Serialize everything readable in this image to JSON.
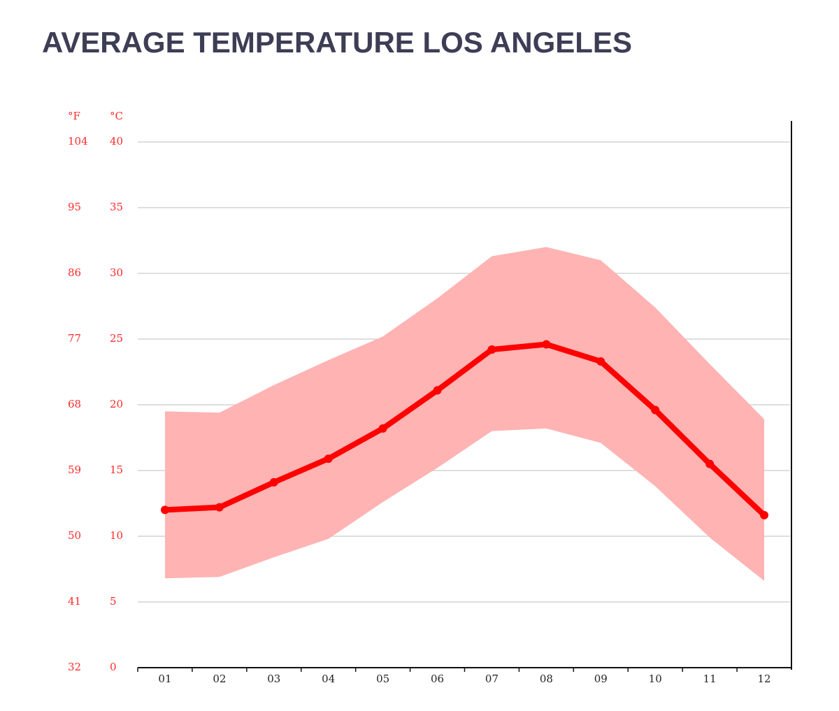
{
  "chart_data": {
    "type": "line",
    "title": "AVERAGE TEMPERATURE LOS ANGELES",
    "y_label": "°C",
    "y2_label": "°F",
    "categories": [
      "01",
      "02",
      "03",
      "04",
      "05",
      "06",
      "07",
      "08",
      "09",
      "10",
      "11",
      "12"
    ],
    "series": [
      {
        "color": "#ff0000",
        "values": [
          12.0,
          12.2,
          14.1,
          15.9,
          18.2,
          21.1,
          24.2,
          24.6,
          23.3,
          19.6,
          15.5,
          11.6
        ]
      }
    ],
    "band": {
      "color": "#ffb3b3",
      "high": [
        19.5,
        19.4,
        21.5,
        23.4,
        25.2,
        28.1,
        31.3,
        32.0,
        31.0,
        27.4,
        23.1,
        18.9
      ],
      "low": [
        6.8,
        6.9,
        8.4,
        9.8,
        12.6,
        15.2,
        18.0,
        18.2,
        17.1,
        13.8,
        9.9,
        6.6
      ]
    },
    "ylim": [
      0,
      40
    ],
    "yticks": [
      0,
      5,
      10,
      15,
      20,
      25,
      30,
      35,
      40
    ],
    "y2lim": [
      32,
      104
    ],
    "y2ticks": [
      32,
      41,
      50,
      59,
      68,
      77,
      86,
      95,
      104
    ],
    "grid": true
  }
}
